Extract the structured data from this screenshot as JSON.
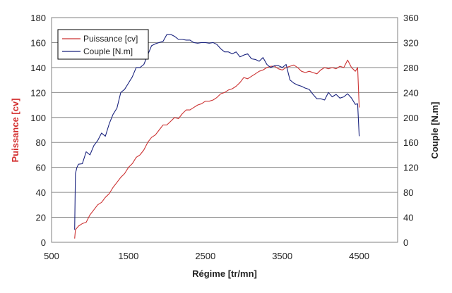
{
  "chart_data": {
    "type": "line",
    "xlabel": "Régime [tr/mn]",
    "ylabel_left": "Puissance [cv]",
    "ylabel_right": "Couple [N.m]",
    "xlim": [
      500,
      5000
    ],
    "ylim_left": [
      0,
      180
    ],
    "ylim_right": [
      0,
      360
    ],
    "xticks": [
      "500",
      "1500",
      "2500",
      "3500",
      "4500"
    ],
    "xtick_values": [
      500,
      1500,
      2500,
      3500,
      4500
    ],
    "yticks_left": [
      "0",
      "20",
      "40",
      "60",
      "80",
      "100",
      "120",
      "140",
      "160",
      "180"
    ],
    "ytick_values_left": [
      0,
      20,
      40,
      60,
      80,
      100,
      120,
      140,
      160,
      180
    ],
    "yticks_right": [
      "0",
      "40",
      "80",
      "120",
      "160",
      "200",
      "240",
      "280",
      "320",
      "360"
    ],
    "ytick_values_right": [
      0,
      40,
      80,
      120,
      160,
      200,
      240,
      280,
      320,
      360
    ],
    "grid": "horizontal",
    "legend_position": "top-left",
    "series": [
      {
        "name": "Puissance [cv]",
        "axis": "left",
        "color": "#cc3333",
        "points": [
          [
            800,
            3
          ],
          [
            810,
            10
          ],
          [
            850,
            13
          ],
          [
            900,
            15
          ],
          [
            950,
            16
          ],
          [
            1000,
            22
          ],
          [
            1050,
            26
          ],
          [
            1100,
            30
          ],
          [
            1150,
            32
          ],
          [
            1200,
            36
          ],
          [
            1250,
            39
          ],
          [
            1300,
            44
          ],
          [
            1350,
            48
          ],
          [
            1400,
            52
          ],
          [
            1450,
            55
          ],
          [
            1500,
            60
          ],
          [
            1550,
            63
          ],
          [
            1600,
            68
          ],
          [
            1650,
            70
          ],
          [
            1700,
            74
          ],
          [
            1750,
            80
          ],
          [
            1800,
            84
          ],
          [
            1850,
            86
          ],
          [
            1900,
            90
          ],
          [
            1950,
            94
          ],
          [
            2000,
            94
          ],
          [
            2050,
            97
          ],
          [
            2100,
            100
          ],
          [
            2150,
            99
          ],
          [
            2200,
            103
          ],
          [
            2250,
            106
          ],
          [
            2300,
            106
          ],
          [
            2350,
            108
          ],
          [
            2400,
            110
          ],
          [
            2450,
            111
          ],
          [
            2500,
            113
          ],
          [
            2550,
            113
          ],
          [
            2600,
            114
          ],
          [
            2650,
            116
          ],
          [
            2700,
            119
          ],
          [
            2750,
            120
          ],
          [
            2800,
            122
          ],
          [
            2850,
            123
          ],
          [
            2900,
            125
          ],
          [
            2950,
            128
          ],
          [
            3000,
            132
          ],
          [
            3050,
            131
          ],
          [
            3100,
            133
          ],
          [
            3150,
            135
          ],
          [
            3200,
            137
          ],
          [
            3250,
            138
          ],
          [
            3300,
            140
          ],
          [
            3350,
            141
          ],
          [
            3400,
            141
          ],
          [
            3450,
            139
          ],
          [
            3500,
            138
          ],
          [
            3550,
            140
          ],
          [
            3600,
            141
          ],
          [
            3650,
            142
          ],
          [
            3700,
            140
          ],
          [
            3750,
            137
          ],
          [
            3800,
            136
          ],
          [
            3850,
            137
          ],
          [
            3900,
            136
          ],
          [
            3950,
            135
          ],
          [
            4000,
            138
          ],
          [
            4050,
            140
          ],
          [
            4100,
            139
          ],
          [
            4150,
            140
          ],
          [
            4200,
            139
          ],
          [
            4250,
            141
          ],
          [
            4300,
            140
          ],
          [
            4350,
            146
          ],
          [
            4400,
            140
          ],
          [
            4450,
            137
          ],
          [
            4480,
            140
          ],
          [
            4500,
            108
          ]
        ]
      },
      {
        "name": "Couple [N.m]",
        "axis": "right",
        "color": "#1a237e",
        "points": [
          [
            800,
            20
          ],
          [
            810,
            110
          ],
          [
            830,
            120
          ],
          [
            850,
            125
          ],
          [
            900,
            126
          ],
          [
            950,
            145
          ],
          [
            1000,
            140
          ],
          [
            1050,
            155
          ],
          [
            1100,
            163
          ],
          [
            1150,
            175
          ],
          [
            1200,
            170
          ],
          [
            1250,
            190
          ],
          [
            1300,
            205
          ],
          [
            1350,
            215
          ],
          [
            1400,
            240
          ],
          [
            1450,
            245
          ],
          [
            1500,
            255
          ],
          [
            1550,
            265
          ],
          [
            1600,
            280
          ],
          [
            1650,
            280
          ],
          [
            1700,
            285
          ],
          [
            1750,
            300
          ],
          [
            1800,
            315
          ],
          [
            1850,
            318
          ],
          [
            1900,
            320
          ],
          [
            1950,
            322
          ],
          [
            2000,
            333
          ],
          [
            2050,
            333
          ],
          [
            2100,
            330
          ],
          [
            2150,
            325
          ],
          [
            2200,
            325
          ],
          [
            2250,
            324
          ],
          [
            2300,
            324
          ],
          [
            2350,
            320
          ],
          [
            2400,
            319
          ],
          [
            2450,
            320
          ],
          [
            2500,
            320
          ],
          [
            2550,
            319
          ],
          [
            2600,
            320
          ],
          [
            2650,
            317
          ],
          [
            2700,
            310
          ],
          [
            2750,
            305
          ],
          [
            2800,
            305
          ],
          [
            2850,
            302
          ],
          [
            2900,
            305
          ],
          [
            2950,
            297
          ],
          [
            3000,
            300
          ],
          [
            3050,
            302
          ],
          [
            3100,
            294
          ],
          [
            3150,
            293
          ],
          [
            3200,
            290
          ],
          [
            3250,
            296
          ],
          [
            3300,
            285
          ],
          [
            3350,
            280
          ],
          [
            3400,
            283
          ],
          [
            3450,
            283
          ],
          [
            3500,
            280
          ],
          [
            3550,
            285
          ],
          [
            3600,
            260
          ],
          [
            3650,
            255
          ],
          [
            3700,
            252
          ],
          [
            3750,
            250
          ],
          [
            3800,
            247
          ],
          [
            3850,
            245
          ],
          [
            3900,
            237
          ],
          [
            3950,
            230
          ],
          [
            4000,
            230
          ],
          [
            4050,
            228
          ],
          [
            4100,
            240
          ],
          [
            4150,
            233
          ],
          [
            4200,
            237
          ],
          [
            4250,
            231
          ],
          [
            4300,
            233
          ],
          [
            4350,
            238
          ],
          [
            4400,
            231
          ],
          [
            4450,
            221
          ],
          [
            4480,
            222
          ],
          [
            4500,
            170
          ]
        ]
      }
    ]
  }
}
